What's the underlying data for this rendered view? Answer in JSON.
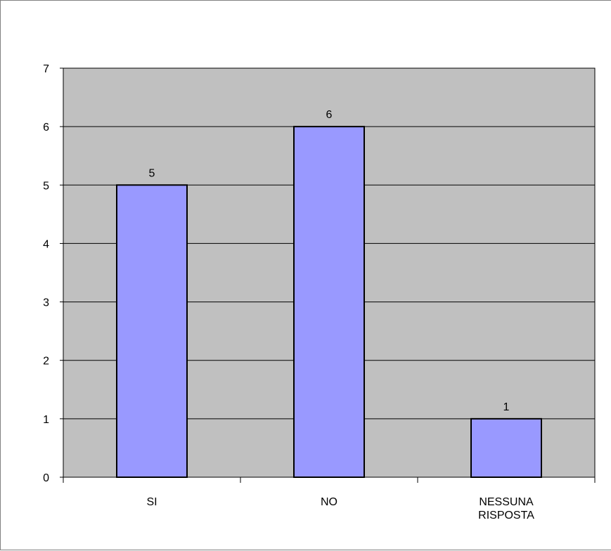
{
  "chart_data": {
    "type": "bar",
    "title": "",
    "xlabel": "",
    "ylabel": "",
    "categories": [
      "SI",
      "NO",
      "NESSUNA RISPOSTA"
    ],
    "category_lines": [
      [
        "SI"
      ],
      [
        "NO"
      ],
      [
        "NESSUNA",
        "RISPOSTA"
      ]
    ],
    "values": [
      5,
      6,
      1
    ],
    "data_labels": [
      "5",
      "6",
      "1"
    ],
    "ylim": [
      0,
      7
    ],
    "yticks": [
      "0",
      "1",
      "2",
      "3",
      "4",
      "5",
      "6",
      "7"
    ],
    "grid": true,
    "legend": "none",
    "colors": {
      "plot_background": "#c0c0c0",
      "bar_fill": "#9999ff",
      "bar_stroke": "#000000",
      "gridline": "#000000",
      "axis": "#000000"
    }
  }
}
